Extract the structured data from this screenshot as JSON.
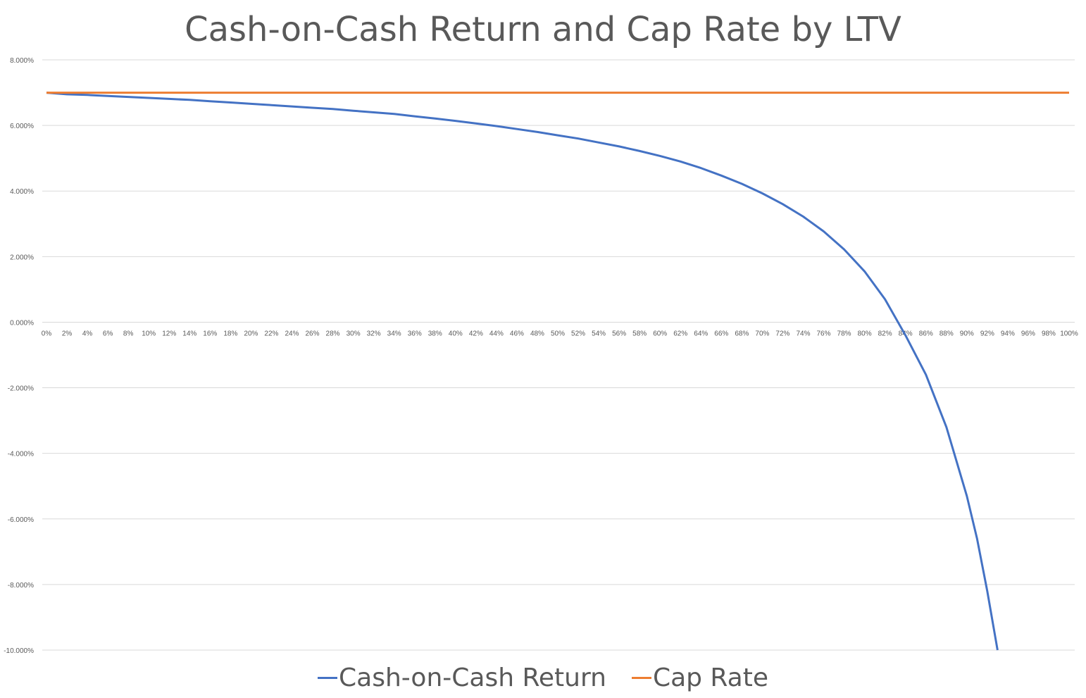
{
  "chart_data": {
    "type": "line",
    "title": "Cash-on-Cash Return and Cap Rate by LTV",
    "xlabel": "",
    "ylabel": "",
    "ylim": [
      -0.1,
      0.08
    ],
    "y_ticks": [
      "8.000%",
      "6.000%",
      "4.000%",
      "2.000%",
      "0.000%",
      "-2.000%",
      "-4.000%",
      "-6.000%",
      "-8.000%",
      "-10.000%"
    ],
    "x_ticks": [
      "0%",
      "2%",
      "4%",
      "6%",
      "8%",
      "10%",
      "12%",
      "14%",
      "16%",
      "18%",
      "20%",
      "22%",
      "24%",
      "26%",
      "28%",
      "30%",
      "32%",
      "34%",
      "36%",
      "38%",
      "40%",
      "42%",
      "44%",
      "46%",
      "48%",
      "50%",
      "52%",
      "54%",
      "56%",
      "58%",
      "60%",
      "62%",
      "64%",
      "66%",
      "68%",
      "70%",
      "72%",
      "74%",
      "76%",
      "78%",
      "80%",
      "82%",
      "84%",
      "86%",
      "88%",
      "90%",
      "92%",
      "94%",
      "96%",
      "98%",
      "100%"
    ],
    "grid": true,
    "legend_position": "bottom",
    "series": [
      {
        "name": "Cash-on-Cash Return",
        "color": "#4472c4",
        "x": [
          0,
          0.02,
          0.04,
          0.06,
          0.08,
          0.1,
          0.12,
          0.14,
          0.16,
          0.18,
          0.2,
          0.22,
          0.24,
          0.26,
          0.28,
          0.3,
          0.32,
          0.34,
          0.36,
          0.38,
          0.4,
          0.42,
          0.44,
          0.46,
          0.48,
          0.5,
          0.52,
          0.54,
          0.56,
          0.58,
          0.6,
          0.62,
          0.64,
          0.66,
          0.68,
          0.7,
          0.72,
          0.74,
          0.76,
          0.78,
          0.8,
          0.82,
          0.84,
          0.86,
          0.88,
          0.9,
          0.91,
          0.92,
          0.93
        ],
        "values": [
          0.07,
          0.0695,
          0.0693,
          0.069,
          0.0687,
          0.0684,
          0.0681,
          0.0678,
          0.0674,
          0.067,
          0.0666,
          0.0662,
          0.0658,
          0.0654,
          0.065,
          0.0645,
          0.064,
          0.0635,
          0.0628,
          0.0621,
          0.0614,
          0.0606,
          0.0598,
          0.0589,
          0.058,
          0.057,
          0.056,
          0.0548,
          0.0536,
          0.0522,
          0.0507,
          0.049,
          0.047,
          0.0447,
          0.0422,
          0.0393,
          0.036,
          0.0322,
          0.0277,
          0.0222,
          0.0155,
          0.007,
          -0.004,
          -0.016,
          -0.032,
          -0.053,
          -0.066,
          -0.082,
          -0.1
        ]
      },
      {
        "name": "Cap Rate",
        "color": "#ed7d31",
        "x": [
          0,
          1.0
        ],
        "values": [
          0.07,
          0.07
        ]
      }
    ]
  }
}
